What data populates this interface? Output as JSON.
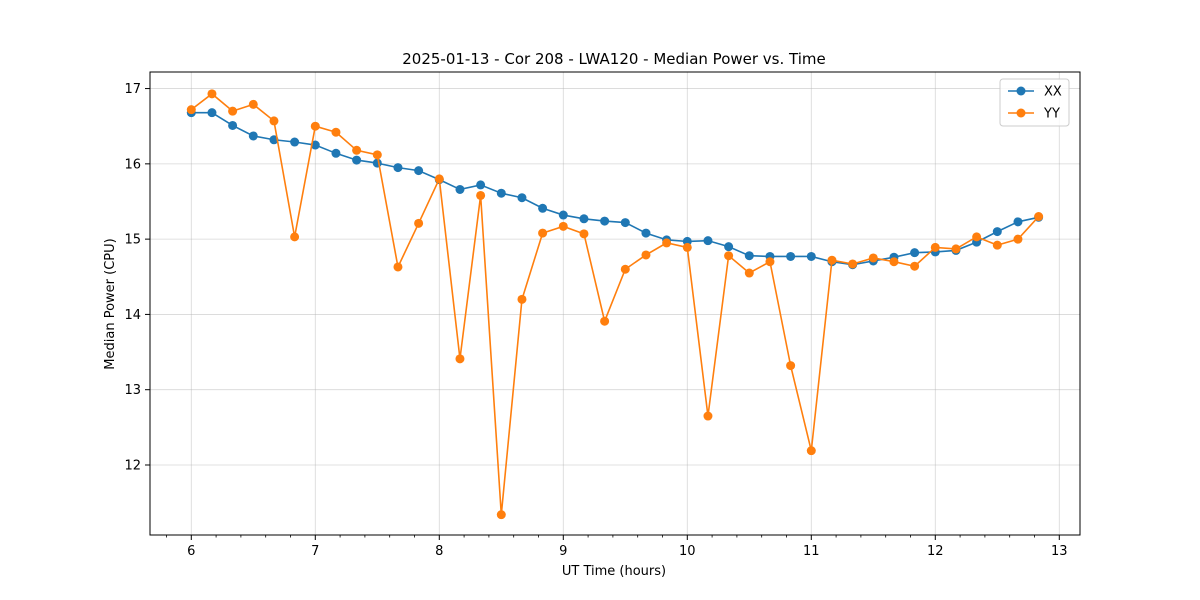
{
  "chart_data": {
    "type": "line",
    "title": "2025-01-13 - Cor 208 - LWA120 - Median Power vs. Time",
    "xlabel": "UT Time (hours)",
    "ylabel": "Median Power (CPU)",
    "xlim": [
      5.667,
      13.167
    ],
    "ylim": [
      11.07,
      17.22
    ],
    "xticks": [
      6,
      7,
      8,
      9,
      10,
      11,
      12,
      13
    ],
    "yticks": [
      12,
      13,
      14,
      15,
      16,
      17
    ],
    "grid": true,
    "legend_position": "top-right",
    "x": [
      6.0,
      6.1667,
      6.3333,
      6.5,
      6.6667,
      6.8333,
      7.0,
      7.1667,
      7.3333,
      7.5,
      7.6667,
      7.8333,
      8.0,
      8.1667,
      8.3333,
      8.5,
      8.6667,
      8.8333,
      9.0,
      9.1667,
      9.3333,
      9.5,
      9.6667,
      9.8333,
      10.0,
      10.1667,
      10.3333,
      10.5,
      10.6667,
      10.8333,
      11.0,
      11.1667,
      11.3333,
      11.5,
      11.6667,
      11.8333,
      12.0,
      12.1667,
      12.3333,
      12.5,
      12.6667,
      12.8333
    ],
    "series": [
      {
        "name": "XX",
        "color": "#1f77b4",
        "values": [
          16.68,
          16.68,
          16.51,
          16.37,
          16.32,
          16.29,
          16.25,
          16.14,
          16.05,
          16.01,
          15.95,
          15.91,
          15.79,
          15.66,
          15.72,
          15.61,
          15.55,
          15.41,
          15.32,
          15.27,
          15.24,
          15.22,
          15.08,
          14.99,
          14.97,
          14.98,
          14.9,
          14.78,
          14.77,
          14.77,
          14.77,
          14.7,
          14.66,
          14.71,
          14.76,
          14.82,
          14.83,
          14.85,
          14.96,
          15.1,
          15.23,
          15.29
        ]
      },
      {
        "name": "YY",
        "color": "#ff7f0e",
        "values": [
          16.72,
          16.93,
          16.7,
          16.79,
          16.57,
          15.03,
          16.5,
          16.42,
          16.18,
          16.12,
          14.63,
          15.21,
          15.8,
          13.41,
          15.58,
          11.34,
          14.2,
          15.08,
          15.17,
          15.07,
          13.91,
          14.6,
          14.79,
          14.95,
          14.89,
          12.65,
          14.78,
          14.55,
          14.7,
          13.32,
          12.19,
          14.72,
          14.67,
          14.75,
          14.7,
          14.64,
          14.89,
          14.87,
          15.03,
          14.92,
          15.0,
          15.3
        ]
      }
    ]
  }
}
